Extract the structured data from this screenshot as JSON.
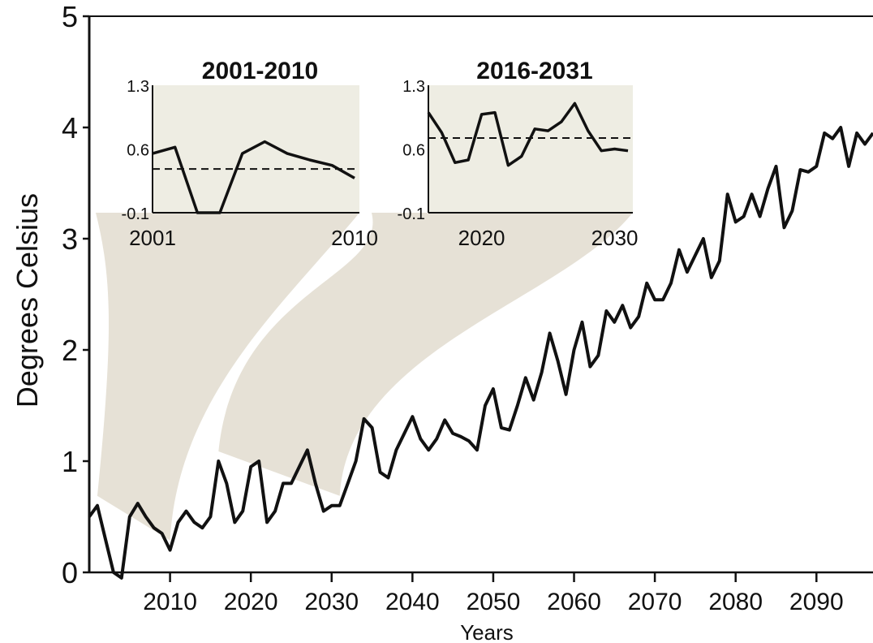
{
  "chart_data": {
    "type": "line",
    "title": "",
    "xlabel": "Years",
    "ylabel": "Degrees Celsius",
    "xlim": [
      2000,
      2097
    ],
    "ylim": [
      0,
      5
    ],
    "x_ticks": [
      "2010",
      "2020",
      "2030",
      "2040",
      "2050",
      "2060",
      "2070",
      "2080",
      "2090"
    ],
    "y_ticks": [
      "0",
      "1",
      "2",
      "3",
      "4",
      "5"
    ],
    "grid": false,
    "colors": {
      "line": "#111111",
      "band": "#e6e1d6",
      "inset_bg": "#eeede3"
    },
    "series": [
      {
        "x": [
          2000,
          2001,
          2002,
          2003,
          2004,
          2005,
          2006,
          2007,
          2008,
          2009,
          2010,
          2011,
          2012,
          2013,
          2014,
          2015,
          2016,
          2017,
          2018,
          2019,
          2020,
          2021,
          2022,
          2023,
          2024,
          2025,
          2026,
          2027,
          2028,
          2029,
          2030,
          2031,
          2032,
          2033,
          2034,
          2035,
          2036,
          2037,
          2038,
          2039,
          2040,
          2041,
          2042,
          2043,
          2044,
          2045,
          2046,
          2047,
          2048,
          2049,
          2050,
          2051,
          2052,
          2053,
          2054,
          2055,
          2056,
          2057,
          2058,
          2059,
          2060,
          2061,
          2062,
          2063,
          2064,
          2065,
          2066,
          2067,
          2068,
          2069,
          2070,
          2071,
          2072,
          2073,
          2074,
          2075,
          2076,
          2077,
          2078,
          2079,
          2080,
          2081,
          2082,
          2083,
          2084,
          2085,
          2086,
          2087,
          2088,
          2089,
          2090,
          2091,
          2092,
          2093,
          2094,
          2095,
          2096,
          2097
        ],
        "y": [
          0.5,
          0.6,
          0.3,
          0.0,
          -0.05,
          0.5,
          0.62,
          0.5,
          0.4,
          0.35,
          0.2,
          0.45,
          0.55,
          0.45,
          0.4,
          0.5,
          1.0,
          0.8,
          0.45,
          0.55,
          0.95,
          1.0,
          0.45,
          0.55,
          0.8,
          0.8,
          0.95,
          1.1,
          0.8,
          0.55,
          0.6,
          0.6,
          0.8,
          1.0,
          1.38,
          1.3,
          0.9,
          0.85,
          1.1,
          1.25,
          1.4,
          1.2,
          1.1,
          1.2,
          1.37,
          1.25,
          1.22,
          1.18,
          1.1,
          1.5,
          1.65,
          1.3,
          1.28,
          1.5,
          1.75,
          1.55,
          1.8,
          2.15,
          1.9,
          1.6,
          2.0,
          2.25,
          1.85,
          1.95,
          2.35,
          2.25,
          2.4,
          2.2,
          2.3,
          2.6,
          2.45,
          2.45,
          2.6,
          2.9,
          2.7,
          2.85,
          3.0,
          2.65,
          2.8,
          3.4,
          3.15,
          3.2,
          3.4,
          3.2,
          3.45,
          3.65,
          3.1,
          3.25,
          3.62,
          3.6,
          3.65,
          3.95,
          3.9,
          4.0,
          3.65,
          3.95,
          3.85,
          3.95
        ]
      }
    ],
    "insets": [
      {
        "title": "2001-2010",
        "ylim": [
          -0.1,
          1.3
        ],
        "y_ticks": [
          "1.3",
          "0.6",
          "-0.1"
        ],
        "x_ticks": [
          "2001",
          "2010"
        ],
        "dashed_level": 0.38,
        "x": [
          2001,
          2002,
          2003,
          2004,
          2005,
          2006,
          2007,
          2008,
          2009,
          2010
        ],
        "y": [
          0.55,
          0.62,
          -0.1,
          -0.1,
          0.55,
          0.68,
          0.55,
          0.48,
          0.42,
          0.28
        ]
      },
      {
        "title": "2016-2031",
        "ylim": [
          -0.1,
          1.3
        ],
        "y_ticks": [
          "1.3",
          "0.6",
          "-0.1"
        ],
        "x_ticks": [
          "2020",
          "2030"
        ],
        "dashed_level": 0.72,
        "x": [
          2016,
          2017,
          2018,
          2019,
          2020,
          2021,
          2022,
          2023,
          2024,
          2025,
          2026,
          2027,
          2028,
          2029,
          2030,
          2031
        ],
        "y": [
          1.0,
          0.78,
          0.45,
          0.48,
          0.98,
          1.0,
          0.42,
          0.52,
          0.82,
          0.8,
          0.9,
          1.1,
          0.8,
          0.58,
          0.6,
          0.58
        ]
      }
    ]
  }
}
